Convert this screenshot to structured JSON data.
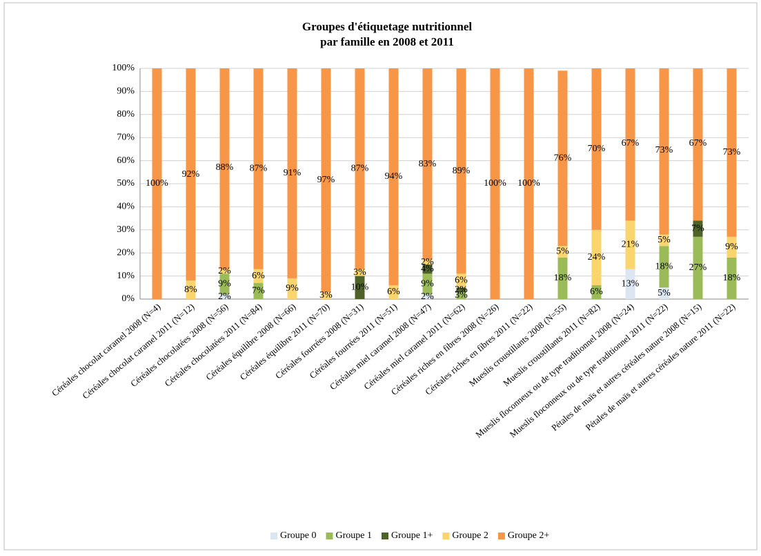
{
  "chart_data": {
    "type": "stacked_bar",
    "title": [
      "Groupes d'étiquetage nutritionnel",
      "par famille en 2008 et 2011"
    ],
    "categories": [
      "Céréales chocolat caramel 2008 (N=4)",
      "Céréales chocolat caramel 2011 (N=12)",
      "Céréales chocolatées 2008 (N=56)",
      "Céréales chocolatées 2011 (N=84)",
      "Céréales équilibre 2008 (N=66)",
      "Céréales équilibre 2011 (N=70)",
      "Céréales fourrées 2008 (N=31)",
      "Céréales fourrées 2011 (N=51)",
      "Céréales miel caramel 2008 (N=47)",
      "Céréales miel caramel 2011 (N=62)",
      "Céréales riches en fibres 2008 (N=26)",
      "Céréales riches en fibres 2011 (N=22)",
      "Mueslis croustillants 2008 (N=55)",
      "Mueslis croustillants 2011 (N=82)",
      "Mueslis floconneux ou de type traditionnel 2008 (N=24)",
      "Mueslis floconneux ou de type traditionnel 2011 (N=22)",
      "Pétales de maïs et autres céréales nature 2008 (N=15)",
      "Pétales de maïs et autres céréales nature 2011 (N=22)"
    ],
    "series": [
      {
        "name": "Groupe 0",
        "color": "#dce6f2",
        "values": [
          null,
          null,
          2,
          null,
          null,
          null,
          null,
          null,
          2,
          null,
          null,
          null,
          null,
          null,
          13,
          5,
          null,
          null
        ],
        "value_labels": [
          null,
          null,
          "2%",
          null,
          null,
          null,
          null,
          null,
          "2%",
          null,
          null,
          null,
          null,
          null,
          "13%",
          "5%",
          null,
          null
        ]
      },
      {
        "name": "Groupe 1",
        "color": "#9bbb59",
        "values": [
          null,
          null,
          9,
          7,
          null,
          null,
          null,
          null,
          9,
          3,
          null,
          null,
          18,
          6,
          null,
          18,
          27,
          18
        ],
        "value_labels": [
          null,
          null,
          "9%",
          "7%",
          null,
          null,
          null,
          null,
          "9%",
          "3%",
          null,
          null,
          "18%",
          "6%",
          null,
          "18%",
          "27%",
          "18%"
        ]
      },
      {
        "name": "Groupe 1+",
        "color": "#4f6228",
        "values": [
          null,
          null,
          null,
          null,
          null,
          null,
          10,
          null,
          4,
          2,
          null,
          null,
          null,
          null,
          null,
          null,
          7,
          null
        ],
        "value_labels": [
          null,
          null,
          null,
          null,
          null,
          null,
          "10%",
          null,
          "4%",
          "2%",
          null,
          null,
          null,
          null,
          null,
          null,
          "7%",
          null
        ]
      },
      {
        "name": "Groupe 2",
        "color": "#fad56e",
        "values": [
          null,
          8,
          2,
          6,
          9,
          3,
          3,
          6,
          2,
          6,
          null,
          null,
          5,
          24,
          21,
          5,
          null,
          9
        ],
        "value_labels": [
          null,
          "8%",
          "2%",
          "6%",
          "9%",
          "3%",
          "3%",
          "6%",
          "2%",
          "6%",
          null,
          null,
          "5%",
          "24%",
          "21%",
          "5%",
          null,
          "9%"
        ]
      },
      {
        "name": "Groupe 2+",
        "color": "#f79646",
        "values": [
          100,
          92,
          88,
          87,
          91,
          97,
          87,
          94,
          83,
          89,
          100,
          100,
          76,
          70,
          67,
          73,
          67,
          73
        ],
        "value_labels": [
          "100%",
          "92%",
          "88%",
          "87%",
          "91%",
          "97%",
          "87%",
          "94%",
          "83%",
          "89%",
          "100%",
          "100%",
          "76%",
          "70%",
          "67%",
          "73%",
          "67%",
          "73%"
        ]
      }
    ],
    "ylim": [
      0,
      100
    ],
    "yticks": [
      {
        "value": 0,
        "label": "0%"
      },
      {
        "value": 10,
        "label": "10%"
      },
      {
        "value": 20,
        "label": "20%"
      },
      {
        "value": 30,
        "label": "30%"
      },
      {
        "value": 40,
        "label": "40%"
      },
      {
        "value": 50,
        "label": "50%"
      },
      {
        "value": 60,
        "label": "60%"
      },
      {
        "value": 70,
        "label": "70%"
      },
      {
        "value": 80,
        "label": "80%"
      },
      {
        "value": 90,
        "label": "90%"
      },
      {
        "value": 100,
        "label": "100%"
      }
    ],
    "grid": true,
    "legend": "bottom"
  }
}
